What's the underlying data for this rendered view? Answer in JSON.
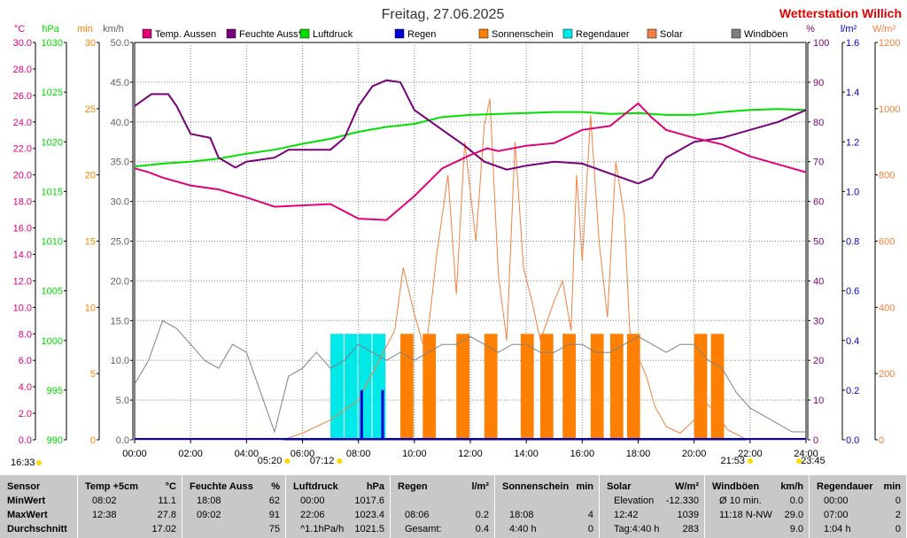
{
  "header": {
    "title": "Freitag, 27.06.2025",
    "station": "Wetterstation Willich"
  },
  "colors": {
    "temp": "#e0007a",
    "humidity": "#780078",
    "pressure": "#00e000",
    "rain": "#0000d0",
    "sunshine": "#ff8000",
    "rain_duration": "#00e8e8",
    "solar": "#f08040",
    "gust": "#808080",
    "grid": "#808080"
  },
  "legend": [
    "Temp. Aussen",
    "Feuchte Auss*",
    "Luftdruck",
    "Regen",
    "Sonnenschein",
    "Regendauer",
    "Solar",
    "Windböen"
  ],
  "axes": {
    "temp": {
      "unit": "°C",
      "ticks": [
        "0.0",
        "2.0",
        "4.0",
        "6.0",
        "8.0",
        "10.0",
        "12.0",
        "14.0",
        "16.0",
        "18.0",
        "20.0",
        "22.0",
        "24.0",
        "26.0",
        "28.0",
        "30.0"
      ]
    },
    "pressure": {
      "unit": "hPa",
      "ticks": [
        "990",
        "995",
        "1000",
        "1005",
        "1010",
        "1015",
        "1020",
        "1025",
        "1030"
      ]
    },
    "minutes": {
      "unit": "min",
      "ticks": [
        "0",
        "5",
        "10",
        "15",
        "20",
        "25",
        "30"
      ]
    },
    "wind": {
      "unit": "km/h",
      "ticks": [
        "0.0",
        "5.0",
        "10.0",
        "15.0",
        "20.0",
        "25.0",
        "30.0",
        "35.0",
        "40.0",
        "45.0",
        "50.0"
      ]
    },
    "humidity": {
      "unit": "%",
      "ticks": [
        "0",
        "10",
        "20",
        "30",
        "40",
        "50",
        "60",
        "70",
        "80",
        "90",
        "100"
      ]
    },
    "rain": {
      "unit": "l/m²",
      "ticks": [
        "0.0",
        "0.2",
        "0.4",
        "0.6",
        "0.8",
        "1.0",
        "1.2",
        "1.4",
        "1.6"
      ]
    },
    "solar": {
      "unit": "W/m²",
      "ticks": [
        "0",
        "200",
        "400",
        "600",
        "800",
        "1000",
        "1200"
      ]
    },
    "time": {
      "ticks": [
        "00:00",
        "02:00",
        "04:00",
        "06:00",
        "08:00",
        "10:00",
        "12:00",
        "14:00",
        "16:00",
        "18:00",
        "20:00",
        "22:00",
        "24:00"
      ]
    }
  },
  "sun_events": [
    {
      "label": "16:33",
      "hour": -1
    },
    {
      "label": "05:20",
      "hour": 5.33
    },
    {
      "label": "07:12",
      "hour": 7.2
    },
    {
      "label": "21:53",
      "hour": 21.88
    },
    {
      "label": "23:45",
      "hour": 23.75
    }
  ],
  "chart_data": {
    "type": "line",
    "x_unit": "hour of day",
    "xlim": [
      0,
      24
    ],
    "series": [
      {
        "name": "Temp. Aussen",
        "axis": "temp",
        "ylim": [
          0,
          30
        ],
        "points": [
          [
            0,
            20.5
          ],
          [
            0.5,
            20.2
          ],
          [
            1,
            19.8
          ],
          [
            2,
            19.2
          ],
          [
            3,
            18.9
          ],
          [
            4,
            18.3
          ],
          [
            5,
            17.6
          ],
          [
            6,
            17.7
          ],
          [
            7,
            17.8
          ],
          [
            8,
            16.7
          ],
          [
            9,
            16.6
          ],
          [
            10,
            18.4
          ],
          [
            11,
            20.5
          ],
          [
            12,
            21.5
          ],
          [
            12.6,
            22.0
          ],
          [
            13,
            21.8
          ],
          [
            14,
            22.2
          ],
          [
            15,
            22.4
          ],
          [
            16,
            23.4
          ],
          [
            17,
            23.7
          ],
          [
            18,
            25.4
          ],
          [
            18.5,
            24.3
          ],
          [
            19,
            23.4
          ],
          [
            20,
            22.8
          ],
          [
            21,
            22.3
          ],
          [
            22,
            21.4
          ],
          [
            23,
            20.8
          ],
          [
            24,
            20.2
          ]
        ]
      },
      {
        "name": "Feuchte Auss*",
        "axis": "humidity",
        "ylim": [
          0,
          100
        ],
        "points": [
          [
            0,
            84
          ],
          [
            0.6,
            87
          ],
          [
            1.2,
            87
          ],
          [
            1.5,
            84
          ],
          [
            2,
            77
          ],
          [
            2.7,
            76
          ],
          [
            3,
            71
          ],
          [
            3.6,
            68.5
          ],
          [
            4,
            70
          ],
          [
            5,
            71
          ],
          [
            5.5,
            73
          ],
          [
            6,
            73
          ],
          [
            7,
            73
          ],
          [
            7.5,
            76
          ],
          [
            8,
            84
          ],
          [
            8.5,
            89
          ],
          [
            9,
            90.5
          ],
          [
            9.5,
            90
          ],
          [
            10,
            83
          ],
          [
            11,
            78
          ],
          [
            11.8,
            74
          ],
          [
            12.5,
            70
          ],
          [
            13.3,
            68
          ],
          [
            14,
            69
          ],
          [
            15,
            70
          ],
          [
            16,
            69.5
          ],
          [
            17,
            67
          ],
          [
            18,
            64.5
          ],
          [
            18.5,
            66
          ],
          [
            19,
            71
          ],
          [
            20,
            75
          ],
          [
            20.5,
            75.5
          ],
          [
            21,
            76
          ],
          [
            22,
            78
          ],
          [
            23,
            80
          ],
          [
            24,
            83
          ]
        ]
      },
      {
        "name": "Luftdruck",
        "axis": "pressure",
        "ylim": [
          990,
          1030
        ],
        "points": [
          [
            0,
            1017.5
          ],
          [
            1,
            1017.8
          ],
          [
            2,
            1018
          ],
          [
            3,
            1018.3
          ],
          [
            4,
            1018.8
          ],
          [
            5,
            1019.2
          ],
          [
            6,
            1019.8
          ],
          [
            7,
            1020.3
          ],
          [
            8,
            1021
          ],
          [
            9,
            1021.5
          ],
          [
            10,
            1021.8
          ],
          [
            11,
            1022.5
          ],
          [
            12,
            1022.7
          ],
          [
            13,
            1022.8
          ],
          [
            14,
            1022.9
          ],
          [
            15,
            1023
          ],
          [
            16,
            1023
          ],
          [
            17,
            1022.8
          ],
          [
            18,
            1022.9
          ],
          [
            19,
            1022.7
          ],
          [
            20,
            1022.7
          ],
          [
            21,
            1023
          ],
          [
            22,
            1023.2
          ],
          [
            23,
            1023.3
          ],
          [
            24,
            1023.2
          ]
        ]
      },
      {
        "name": "Solar",
        "axis": "solar",
        "ylim": [
          0,
          1200
        ],
        "points": [
          [
            0,
            0
          ],
          [
            5.3,
            0
          ],
          [
            6,
            20
          ],
          [
            7,
            60
          ],
          [
            8,
            120
          ],
          [
            8.8,
            250
          ],
          [
            9.3,
            330
          ],
          [
            9.6,
            520
          ],
          [
            10,
            380
          ],
          [
            10.4,
            260
          ],
          [
            10.8,
            560
          ],
          [
            11.2,
            800
          ],
          [
            11.5,
            440
          ],
          [
            11.8,
            900
          ],
          [
            12.2,
            600
          ],
          [
            12.5,
            950
          ],
          [
            12.7,
            1030
          ],
          [
            13,
            500
          ],
          [
            13.3,
            300
          ],
          [
            13.6,
            900
          ],
          [
            13.9,
            520
          ],
          [
            14.2,
            420
          ],
          [
            14.5,
            300
          ],
          [
            15,
            420
          ],
          [
            15.3,
            480
          ],
          [
            15.6,
            330
          ],
          [
            15.8,
            800
          ],
          [
            16,
            540
          ],
          [
            16.3,
            980
          ],
          [
            16.6,
            600
          ],
          [
            16.9,
            370
          ],
          [
            17.2,
            840
          ],
          [
            17.5,
            680
          ],
          [
            17.7,
            330
          ],
          [
            18,
            250
          ],
          [
            18.3,
            190
          ],
          [
            18.6,
            100
          ],
          [
            19,
            40
          ],
          [
            19.5,
            20
          ],
          [
            20,
            60
          ],
          [
            20.3,
            120
          ],
          [
            20.7,
            90
          ],
          [
            21.2,
            30
          ],
          [
            21.9,
            0
          ],
          [
            24,
            0
          ]
        ]
      },
      {
        "name": "Windböen",
        "axis": "wind",
        "ylim": [
          0,
          50
        ],
        "points": [
          [
            0,
            7
          ],
          [
            0.5,
            10
          ],
          [
            1,
            15
          ],
          [
            1.5,
            14
          ],
          [
            2,
            12
          ],
          [
            2.5,
            10
          ],
          [
            3,
            9
          ],
          [
            3.5,
            12
          ],
          [
            4,
            11
          ],
          [
            4.5,
            6
          ],
          [
            5,
            1
          ],
          [
            5.5,
            8
          ],
          [
            6,
            9
          ],
          [
            6.5,
            11
          ],
          [
            7,
            9
          ],
          [
            7.5,
            10
          ],
          [
            8,
            12
          ],
          [
            8.5,
            11
          ],
          [
            9,
            10
          ],
          [
            9.5,
            11
          ],
          [
            10,
            10
          ],
          [
            10.5,
            11
          ],
          [
            11,
            12
          ],
          [
            11.5,
            12
          ],
          [
            12,
            13
          ],
          [
            12.5,
            12
          ],
          [
            13,
            11
          ],
          [
            13.5,
            12
          ],
          [
            14,
            12
          ],
          [
            14.5,
            11
          ],
          [
            15,
            11
          ],
          [
            15.5,
            12
          ],
          [
            16,
            12
          ],
          [
            16.5,
            11
          ],
          [
            17,
            11
          ],
          [
            17.5,
            12
          ],
          [
            18,
            13
          ],
          [
            18.5,
            12
          ],
          [
            19,
            11
          ],
          [
            19.5,
            12
          ],
          [
            20,
            12
          ],
          [
            20.5,
            10
          ],
          [
            21,
            9
          ],
          [
            21.5,
            6
          ],
          [
            22,
            4
          ],
          [
            22.5,
            3
          ],
          [
            23,
            2
          ],
          [
            23.5,
            1
          ],
          [
            24,
            1
          ]
        ]
      }
    ],
    "bars": {
      "regendauer_min": [
        [
          7,
          8
        ],
        [
          7.5,
          8
        ],
        [
          8,
          8
        ],
        [
          8.5,
          8
        ]
      ],
      "sonnenschein_min": [
        [
          9.5,
          8
        ],
        [
          10.3,
          8
        ],
        [
          11.5,
          8
        ],
        [
          12.5,
          8
        ],
        [
          13.8,
          8
        ],
        [
          14.5,
          8
        ],
        [
          15.3,
          8
        ],
        [
          16.3,
          8
        ],
        [
          17,
          8
        ],
        [
          17.6,
          8
        ],
        [
          20,
          8
        ],
        [
          20.6,
          8
        ]
      ],
      "regen_lm2": [
        [
          8.1,
          0.2
        ],
        [
          8.85,
          0.2
        ]
      ]
    }
  },
  "stats": {
    "columns": [
      {
        "header": "Sensor",
        "unit": "",
        "rows": [
          "MinWert",
          "MaxWert",
          "Durchschnitt"
        ]
      },
      {
        "header": "Temp +5cm",
        "unit": "°C",
        "rows": [
          [
            "08:02",
            "11.1"
          ],
          [
            "12:38",
            "27.8"
          ],
          [
            "",
            "17.02"
          ]
        ]
      },
      {
        "header": "Feuchte Auss",
        "unit": "%",
        "rows": [
          [
            "18:08",
            "62"
          ],
          [
            "09:02",
            "91"
          ],
          [
            "",
            "75"
          ]
        ]
      },
      {
        "header": "Luftdruck",
        "unit": "hPa",
        "rows": [
          [
            "00:00",
            "1017.6"
          ],
          [
            "22:06",
            "1023.4"
          ],
          [
            "^1.1hPa/h",
            "1021.5"
          ]
        ]
      },
      {
        "header": "Regen",
        "unit": "l/m²",
        "rows": [
          [
            "",
            ""
          ],
          [
            "08:06",
            "0.2"
          ],
          [
            "Gesamt:",
            "0.4"
          ]
        ]
      },
      {
        "header": "Sonnenschein",
        "unit": "min",
        "rows": [
          [
            "",
            ""
          ],
          [
            "18:08",
            "4"
          ],
          [
            "4:40 h",
            "0"
          ]
        ]
      },
      {
        "header": "Solar",
        "unit": "W/m²",
        "rows": [
          [
            "Elevation",
            "-12.330"
          ],
          [
            "12:42",
            "1039"
          ],
          [
            "Tag:4:40 h",
            "283"
          ]
        ]
      },
      {
        "header": "Windböen",
        "unit": "km/h",
        "rows": [
          [
            "Ø 10 min.",
            "0.0"
          ],
          [
            "11:18   N-NW",
            "29.0"
          ],
          [
            "",
            "9.0"
          ]
        ]
      },
      {
        "header": "Regendauer",
        "unit": "min",
        "rows": [
          [
            "00:00",
            "0"
          ],
          [
            "07:00",
            "2"
          ],
          [
            "1:04 h",
            "0"
          ]
        ]
      }
    ]
  }
}
